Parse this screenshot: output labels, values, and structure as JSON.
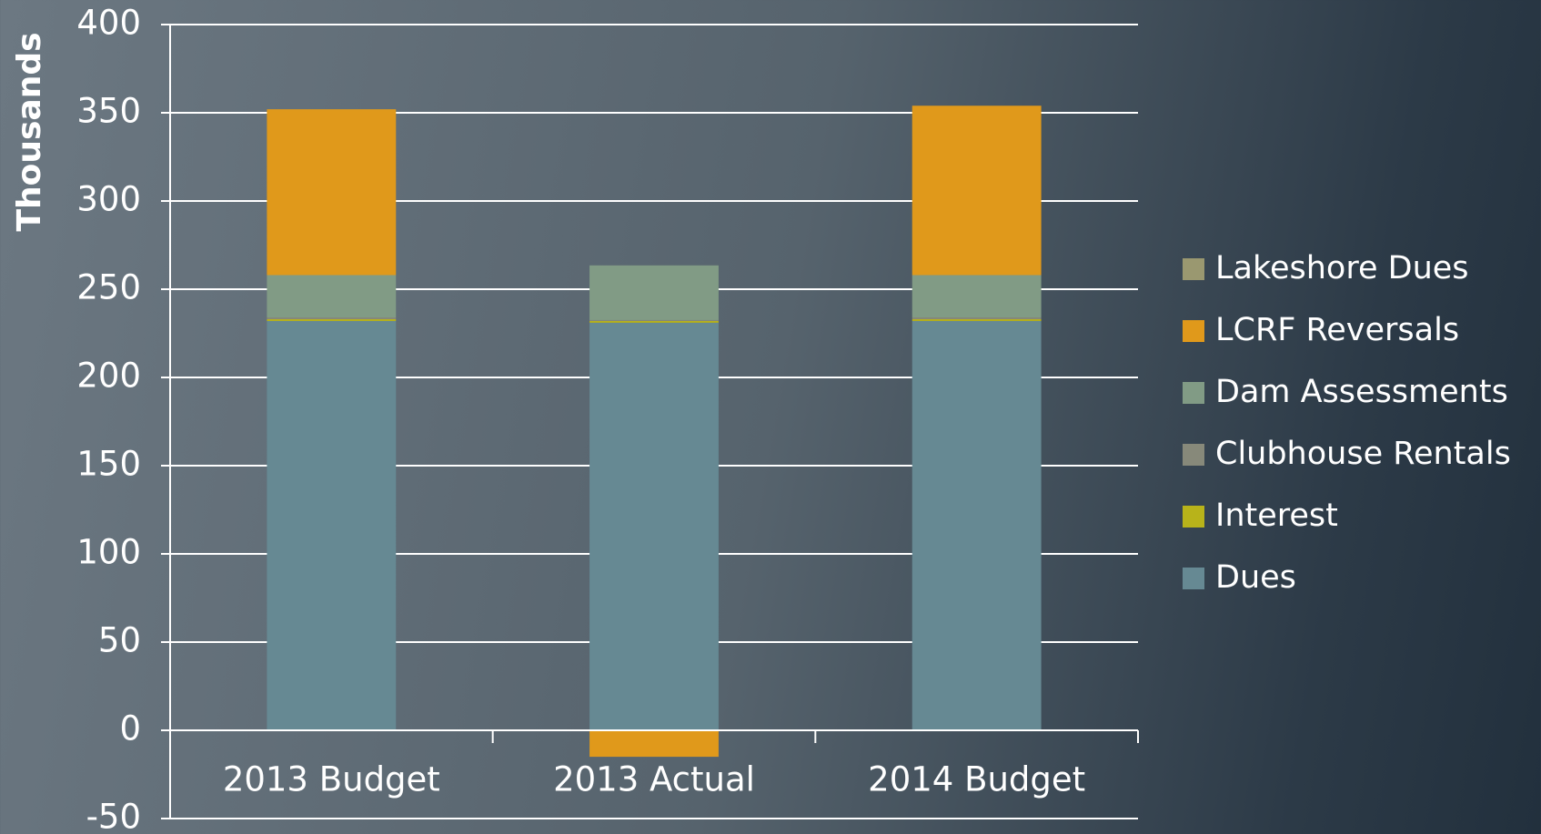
{
  "chart_data": {
    "type": "stacked_bar",
    "ylabel": "Thousands",
    "categories": [
      "2013 Budget",
      "2013 Actual",
      "2014 Budget"
    ],
    "series": [
      {
        "name": "Dues",
        "color": "#668993",
        "values": [
          232,
          231,
          232
        ]
      },
      {
        "name": "Interest",
        "color": "#b8b31a",
        "values": [
          1,
          1,
          1
        ]
      },
      {
        "name": "Clubhouse Rentals",
        "color": "#87897a",
        "values": [
          1,
          0.5,
          1
        ]
      },
      {
        "name": "Dam Assessments",
        "color": "#819b85",
        "values": [
          24,
          31,
          24
        ]
      },
      {
        "name": "LCRF Reversals",
        "color": "#e0991b",
        "values": [
          94,
          -15,
          96
        ]
      },
      {
        "name": "Lakeshore Dues",
        "color": "#9a9870",
        "values": [
          0,
          0,
          0
        ]
      }
    ],
    "ylim": [
      -50,
      400
    ],
    "yticks": [
      -50,
      0,
      50,
      100,
      150,
      200,
      250,
      300,
      350,
      400
    ],
    "grid": true,
    "legend": "right"
  }
}
